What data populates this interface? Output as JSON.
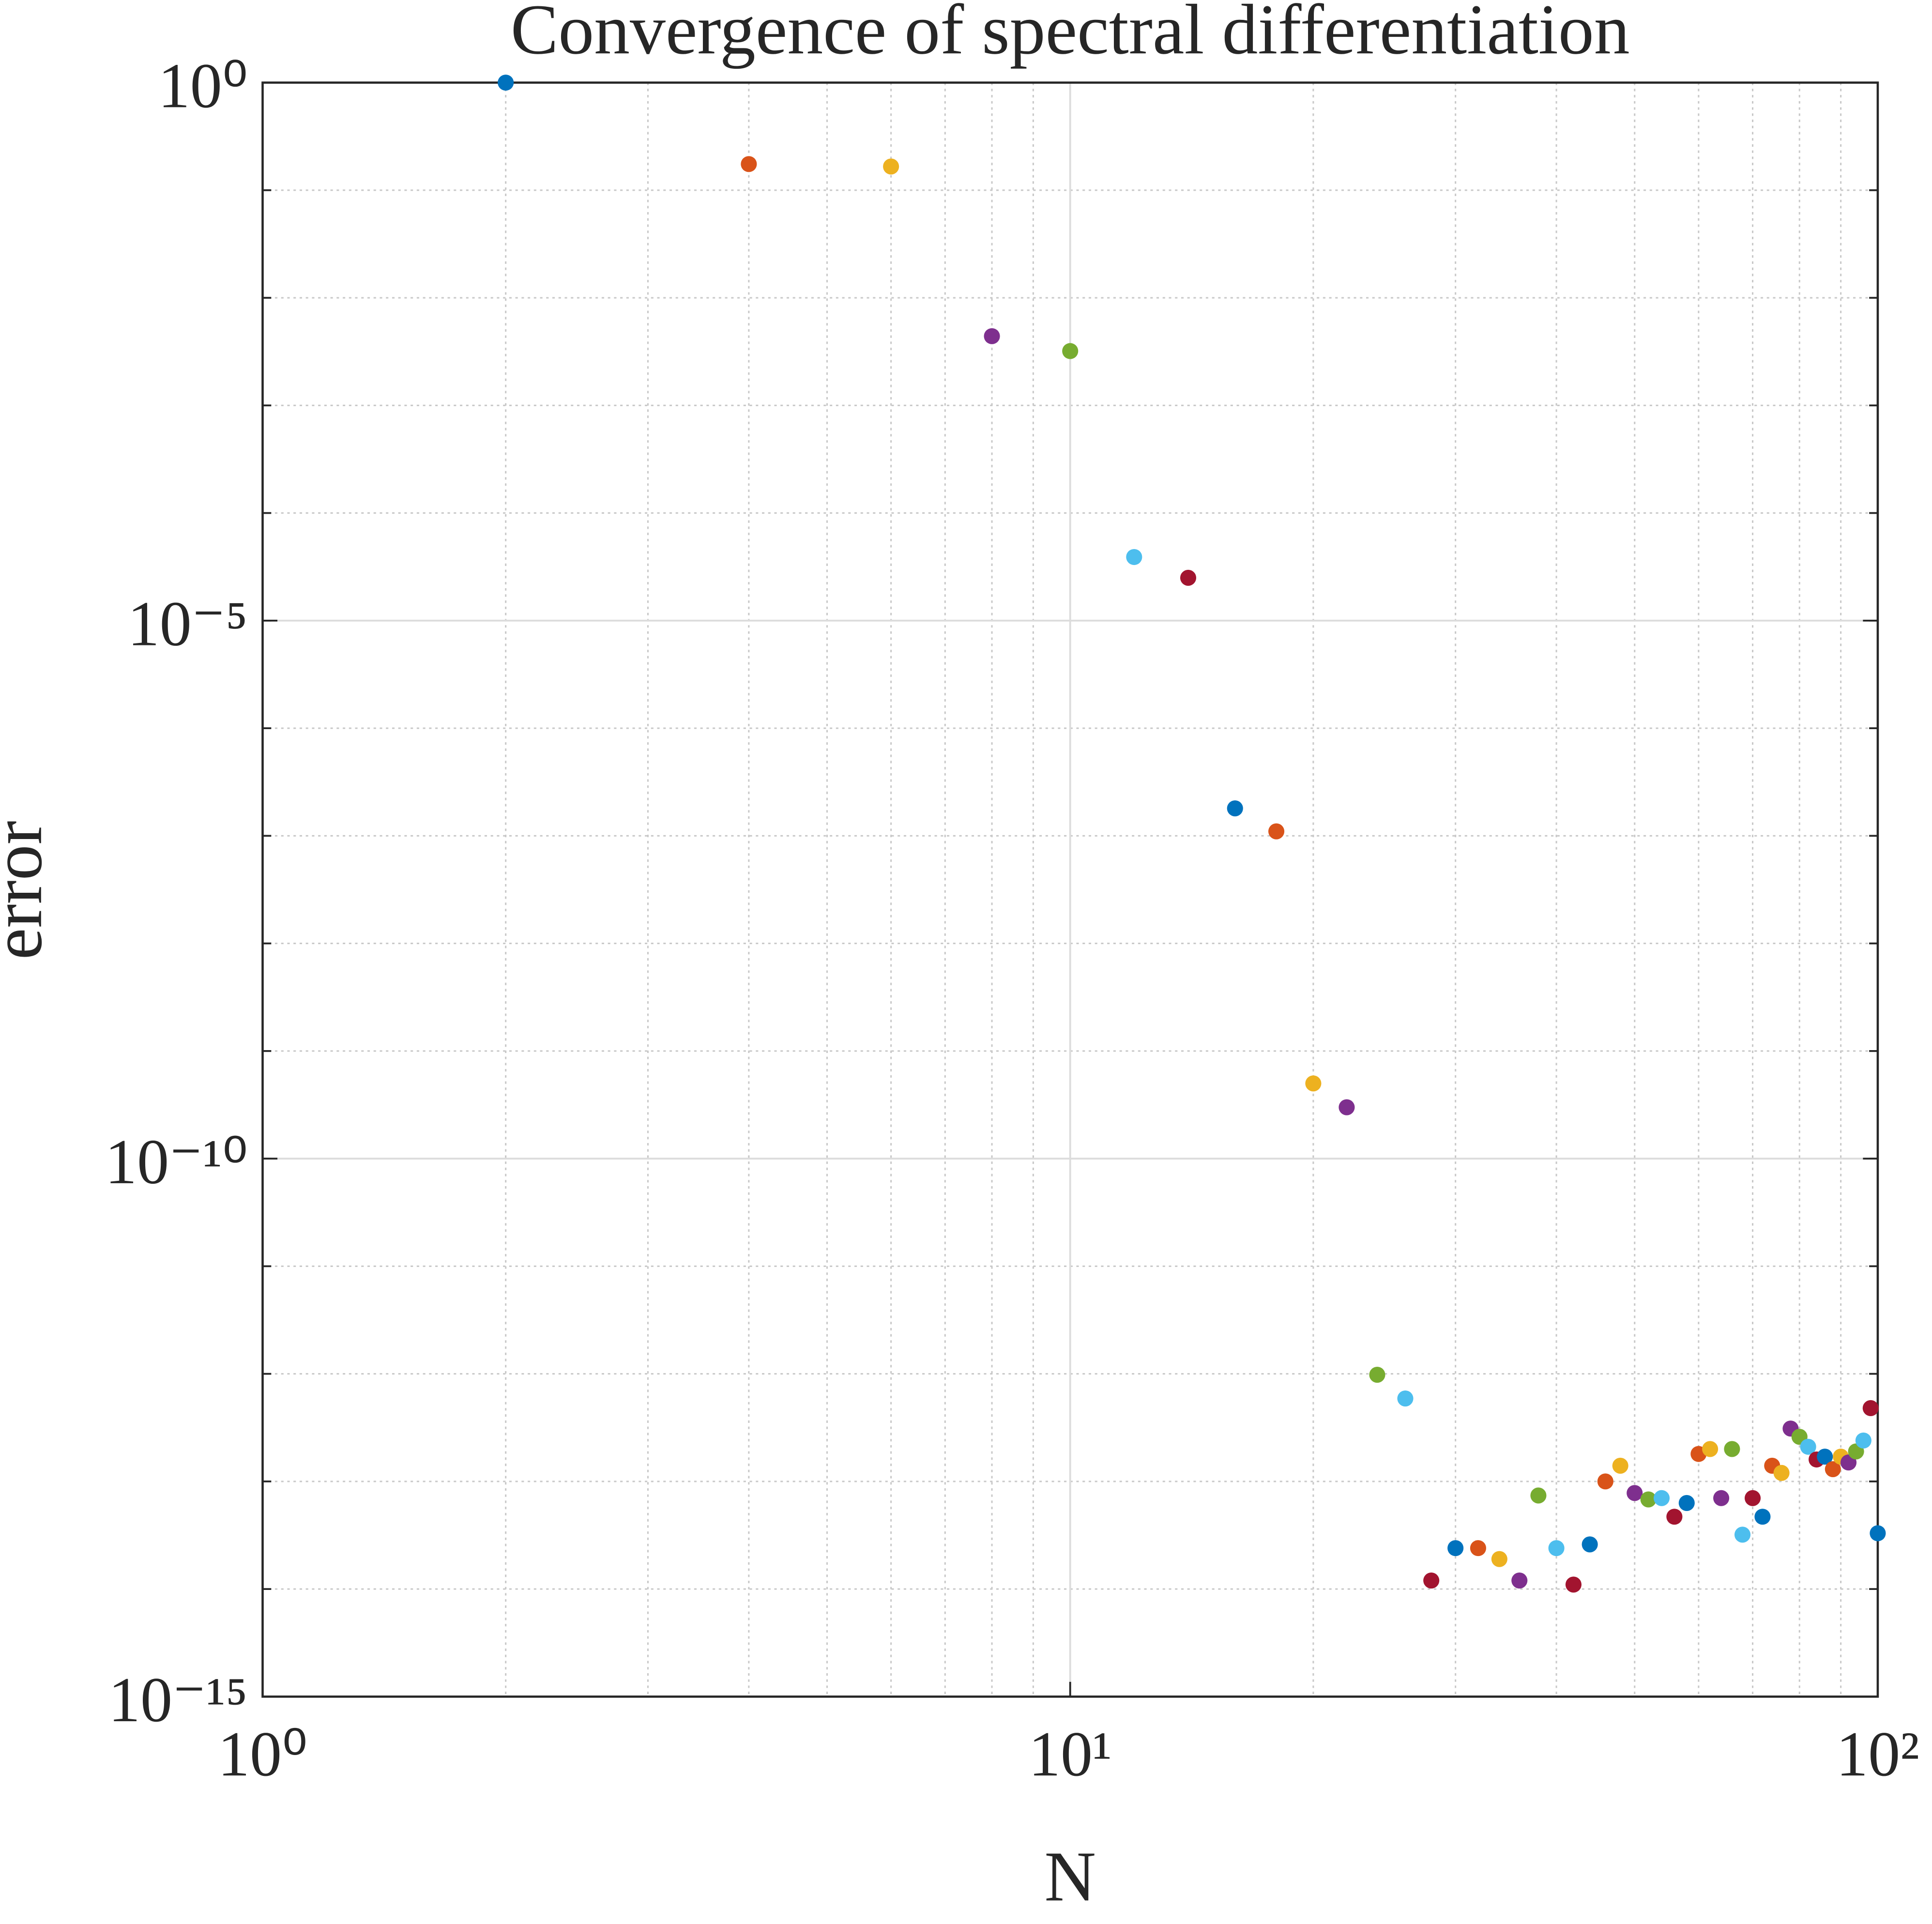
{
  "chart_data": {
    "type": "scatter",
    "title": "Convergence of spectral differentiation",
    "x_label": "N",
    "y_label": "error",
    "x": [
      2,
      4,
      6,
      8,
      10,
      12,
      14,
      16,
      18,
      20,
      22,
      24,
      26,
      28,
      30,
      32,
      34,
      36,
      38,
      40,
      42,
      44,
      46,
      48,
      50,
      52,
      54,
      56,
      58,
      60,
      62,
      64,
      66,
      68,
      70,
      72,
      74,
      76,
      78,
      80,
      82,
      84,
      86,
      88,
      90,
      92,
      94,
      96,
      98,
      100
    ],
    "values": [
      1,
      0.175,
      0.166,
      0.0044,
      0.0032,
      3.9e-05,
      2.5e-05,
      1.8e-07,
      1.1e-07,
      5e-10,
      3e-10,
      9.8e-13,
      5.9e-13,
      1.2e-14,
      2.4e-14,
      2.4e-14,
      1.9e-14,
      1.2e-14,
      7.4e-14,
      2.4e-14,
      1.1e-14,
      2.6e-14,
      1e-13,
      1.4e-13,
      7.8e-14,
      6.8e-14,
      7e-14,
      4.7e-14,
      6.3e-14,
      1.8e-13,
      2e-13,
      7e-14,
      2e-13,
      3.2e-14,
      7e-14,
      4.7e-14,
      1.4e-13,
      1.2e-13,
      3.1e-13,
      2.6e-13,
      2.1e-13,
      1.6e-13,
      1.7e-13,
      1.3e-13,
      1.7e-13,
      1.5e-13,
      1.9e-13,
      2.4e-13,
      4.8e-13,
      3.3e-14
    ],
    "colors": [
      "#0072BD",
      "#D95319",
      "#EDB120",
      "#7E2F8E",
      "#77AC30",
      "#4DBEEE",
      "#A2142F"
    ],
    "xlim": [
      1,
      100
    ],
    "ylim": [
      1e-15,
      1
    ],
    "xticks": [
      {
        "value": 1,
        "label": "10⁰"
      },
      {
        "value": 10,
        "label": "10¹"
      },
      {
        "value": 100,
        "label": "10²"
      }
    ],
    "yticks": [
      {
        "value": 1e-15,
        "label": "10⁻¹⁵"
      },
      {
        "value": 1e-10,
        "label": "10⁻¹⁰"
      },
      {
        "value": 1e-05,
        "label": "10⁻⁵"
      },
      {
        "value": 1,
        "label": "10⁰"
      }
    ],
    "xscale": "log",
    "yscale": "log",
    "grid": true,
    "minor_grid": true
  }
}
